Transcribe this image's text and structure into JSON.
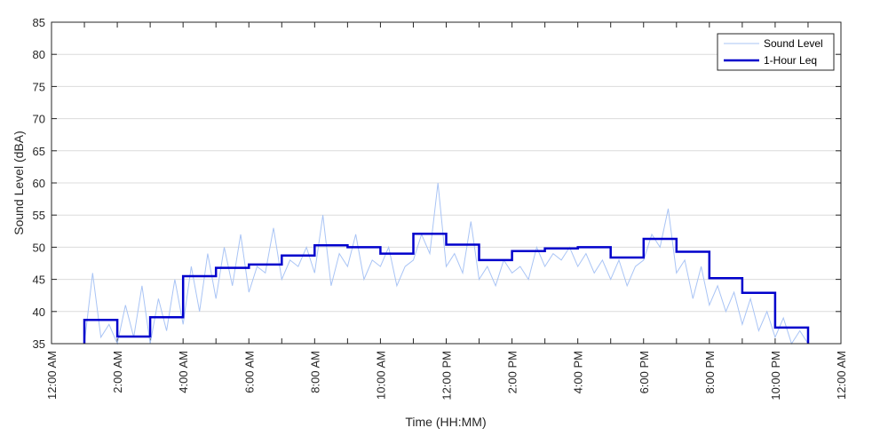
{
  "chart_data": {
    "type": "line",
    "title": "",
    "xlabel": "Time (HH:MM)",
    "ylabel": "Sound Level (dBA)",
    "ylim": [
      35,
      85
    ],
    "y_ticks": [
      35,
      40,
      45,
      50,
      55,
      60,
      65,
      70,
      75,
      80,
      85
    ],
    "xlim_hours": [
      0,
      24
    ],
    "x_tick_hours": [
      0,
      2,
      4,
      6,
      8,
      10,
      12,
      14,
      16,
      18,
      20,
      22,
      24
    ],
    "x_tick_labels": [
      "12:00 AM",
      "2:00 AM",
      "4:00 AM",
      "6:00 AM",
      "8:00 AM",
      "10:00 AM",
      "12:00 PM",
      "2:00 PM",
      "4:00 PM",
      "6:00 PM",
      "8:00 PM",
      "10:00 PM",
      "12:00 AM"
    ],
    "grid": "horizontal",
    "legend_position": "top-right",
    "series": [
      {
        "name": "Sound Level",
        "color": "#a9c4f5",
        "style": "thin noisy line",
        "x_hours": [
          1.0,
          1.25,
          1.5,
          1.75,
          2.0,
          2.25,
          2.5,
          2.75,
          3.0,
          3.25,
          3.5,
          3.75,
          4.0,
          4.25,
          4.5,
          4.75,
          5.0,
          5.25,
          5.5,
          5.75,
          6.0,
          6.25,
          6.5,
          6.75,
          7.0,
          7.25,
          7.5,
          7.75,
          8.0,
          8.25,
          8.5,
          8.75,
          9.0,
          9.25,
          9.5,
          9.75,
          10.0,
          10.25,
          10.5,
          10.75,
          11.0,
          11.25,
          11.5,
          11.75,
          12.0,
          12.25,
          12.5,
          12.75,
          13.0,
          13.25,
          13.5,
          13.75,
          14.0,
          14.25,
          14.5,
          14.75,
          15.0,
          15.25,
          15.5,
          15.75,
          16.0,
          16.25,
          16.5,
          16.75,
          17.0,
          17.25,
          17.5,
          17.75,
          18.0,
          18.25,
          18.5,
          18.75,
          19.0,
          19.25,
          19.5,
          19.75,
          20.0,
          20.25,
          20.5,
          20.75,
          21.0,
          21.25,
          21.5,
          21.75,
          22.0,
          22.25,
          22.5,
          22.75,
          23.0
        ],
        "values": [
          35,
          46,
          36,
          38,
          35,
          41,
          36,
          44,
          35,
          42,
          37,
          45,
          38,
          47,
          40,
          49,
          42,
          50,
          44,
          52,
          43,
          47,
          46,
          53,
          45,
          48,
          47,
          50,
          46,
          55,
          44,
          49,
          47,
          52,
          45,
          48,
          47,
          50,
          44,
          47,
          48,
          52,
          49,
          60,
          47,
          49,
          46,
          54,
          45,
          47,
          44,
          48,
          46,
          47,
          45,
          50,
          47,
          49,
          48,
          50,
          47,
          49,
          46,
          48,
          45,
          48,
          44,
          47,
          48,
          52,
          50,
          56,
          46,
          48,
          42,
          47,
          41,
          44,
          40,
          43,
          38,
          42,
          37,
          40,
          36,
          39,
          35,
          37,
          35
        ]
      },
      {
        "name": "1-Hour Leq",
        "color": "#0000cc",
        "style": "thick step line",
        "step_start_hours": [
          1,
          2,
          3,
          4,
          5,
          6,
          7,
          8,
          9,
          10,
          11,
          12,
          13,
          14,
          15,
          16,
          17,
          18,
          19,
          20,
          21,
          22
        ],
        "values": [
          38.7,
          36.1,
          39.1,
          45.5,
          46.8,
          47.3,
          48.7,
          50.3,
          50.0,
          49.0,
          52.1,
          50.4,
          48.0,
          49.4,
          49.8,
          50.0,
          48.4,
          51.3,
          49.3,
          45.2,
          42.9,
          37.5
        ],
        "step_end_hour": 23
      }
    ]
  }
}
